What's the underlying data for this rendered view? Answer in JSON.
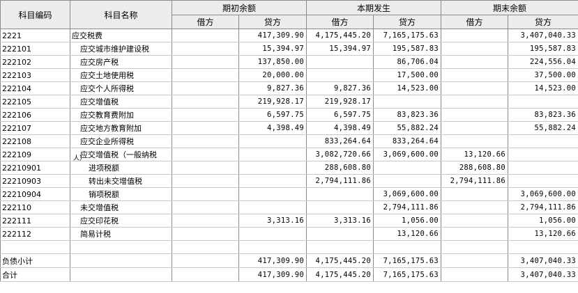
{
  "header": {
    "code": "科目编码",
    "name": "科目名称",
    "opening": "期初余额",
    "current": "本期发生",
    "closing": "期末余额",
    "debit": "借方",
    "credit": "贷方"
  },
  "rows": [
    {
      "code": "2221",
      "name": "应交税费",
      "level": 0,
      "od": "",
      "oc": "417,309.90",
      "cd": "4,175,445.20",
      "cc": "7,165,175.63",
      "ed": "",
      "ec": "3,407,040.33"
    },
    {
      "code": "222101",
      "name": "应交城市维护建设税",
      "level": 1,
      "od": "",
      "oc": "15,394.97",
      "cd": "15,394.97",
      "cc": "195,587.83",
      "ed": "",
      "ec": "195,587.83"
    },
    {
      "code": "222102",
      "name": "应交房产税",
      "level": 1,
      "od": "",
      "oc": "137,850.00",
      "cd": "",
      "cc": "86,706.04",
      "ed": "",
      "ec": "224,556.04"
    },
    {
      "code": "222103",
      "name": "应交土地使用税",
      "level": 1,
      "od": "",
      "oc": "20,000.00",
      "cd": "",
      "cc": "17,500.00",
      "ed": "",
      "ec": "37,500.00"
    },
    {
      "code": "222104",
      "name": "应交个人所得税",
      "level": 1,
      "od": "",
      "oc": "9,827.36",
      "cd": "9,827.36",
      "cc": "14,523.00",
      "ed": "",
      "ec": "14,523.00"
    },
    {
      "code": "222105",
      "name": "应交增值税",
      "level": 1,
      "od": "",
      "oc": "219,928.17",
      "cd": "219,928.17",
      "cc": "",
      "ed": "",
      "ec": ""
    },
    {
      "code": "222106",
      "name": "应交教育费附加",
      "level": 1,
      "od": "",
      "oc": "6,597.75",
      "cd": "6,597.75",
      "cc": "83,823.36",
      "ed": "",
      "ec": "83,823.36"
    },
    {
      "code": "222107",
      "name": "应交地方教育附加",
      "level": 1,
      "od": "",
      "oc": "4,398.49",
      "cd": "4,398.49",
      "cc": "55,882.24",
      "ed": "",
      "ec": "55,882.24"
    },
    {
      "code": "222108",
      "name": "应交企业所得税",
      "level": 1,
      "od": "",
      "oc": "",
      "cd": "833,264.64",
      "cc": "833,264.64",
      "ed": "",
      "ec": ""
    },
    {
      "code": "222109",
      "name": "应交增值税（一般纳税",
      "tail": "人）",
      "level": 1,
      "od": "",
      "oc": "",
      "cd": "3,082,720.66",
      "cc": "3,069,600.00",
      "ed": "13,120.66",
      "ec": ""
    },
    {
      "code": "22210901",
      "name": "进项税额",
      "level": 2,
      "od": "",
      "oc": "",
      "cd": "288,608.80",
      "cc": "",
      "ed": "288,608.80",
      "ec": ""
    },
    {
      "code": "22210903",
      "name": "转出未交增值税",
      "level": 2,
      "od": "",
      "oc": "",
      "cd": "2,794,111.86",
      "cc": "",
      "ed": "2,794,111.86",
      "ec": ""
    },
    {
      "code": "22210904",
      "name": "销项税额",
      "level": 2,
      "od": "",
      "oc": "",
      "cd": "",
      "cc": "3,069,600.00",
      "ed": "",
      "ec": "3,069,600.00"
    },
    {
      "code": "222110",
      "name": "未交增值税",
      "level": 1,
      "od": "",
      "oc": "",
      "cd": "",
      "cc": "2,794,111.86",
      "ed": "",
      "ec": "2,794,111.86"
    },
    {
      "code": "222111",
      "name": "应交印花税",
      "level": 1,
      "od": "",
      "oc": "3,313.16",
      "cd": "3,313.16",
      "cc": "1,056.00",
      "ed": "",
      "ec": "1,056.00"
    },
    {
      "code": "222112",
      "name": "简易计税",
      "level": 1,
      "od": "",
      "oc": "",
      "cd": "",
      "cc": "13,120.66",
      "ed": "",
      "ec": "13,120.66"
    }
  ],
  "totals": [
    {
      "name": "负债小计",
      "od": "",
      "oc": "417,309.90",
      "cd": "4,175,445.20",
      "cc": "7,165,175.63",
      "ed": "",
      "ec": "3,407,040.33"
    },
    {
      "name": "合计",
      "od": "",
      "oc": "417,309.90",
      "cd": "4,175,445.20",
      "cc": "7,165,175.63",
      "ed": "",
      "ec": "3,407,040.33"
    }
  ]
}
